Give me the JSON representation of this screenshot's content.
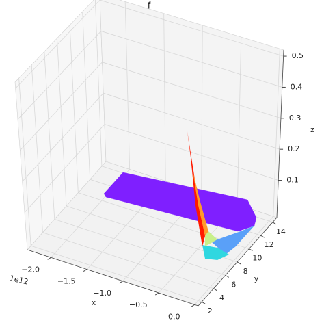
{
  "chart_data": {
    "type": "surface",
    "title": "f",
    "x_label": "x",
    "y_label": "y",
    "z_label": "z",
    "x_offset_text": "1e12",
    "xlim": [
      -2330000000000,
      50000000000
    ],
    "xticks": [
      {
        "value": -2000000000000,
        "label": "−2.0"
      },
      {
        "value": -1500000000000,
        "label": "−1.5"
      },
      {
        "value": -1000000000000,
        "label": "−1.0"
      },
      {
        "value": -500000000000,
        "label": "−0.5"
      },
      {
        "value": 0,
        "label": "0.0"
      }
    ],
    "ylim": [
      1.4,
      14.7
    ],
    "yticks": [
      2,
      4,
      6,
      8,
      10,
      12,
      14
    ],
    "zlim": [
      -0.02,
      0.52
    ],
    "zticks": [
      0.1,
      0.2,
      0.3,
      0.4,
      0.5
    ],
    "grid": true
  }
}
